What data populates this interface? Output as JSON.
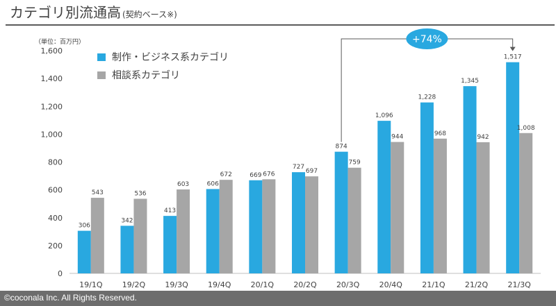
{
  "page": {
    "title": "カテゴリ別流通高",
    "title_note": "(契約ベース※)",
    "footer": "©coconala Inc. All Rights Reserved."
  },
  "chart_data": {
    "type": "bar",
    "title": "カテゴリ別流通高",
    "unit_label": "（単位：百万円）",
    "categories": [
      "19/1Q",
      "19/2Q",
      "19/3Q",
      "19/4Q",
      "20/1Q",
      "20/2Q",
      "20/3Q",
      "20/4Q",
      "21/1Q",
      "21/2Q",
      "21/3Q"
    ],
    "series": [
      {
        "name": "制作・ビジネス系カテゴリ",
        "color": "#29a8e0",
        "values": [
          306,
          342,
          413,
          606,
          669,
          727,
          874,
          1096,
          1228,
          1345,
          1517
        ],
        "labels": [
          "306",
          "342",
          "413",
          "606",
          "669",
          "727",
          "874",
          "1,096",
          "1,228",
          "1,345",
          "1,517"
        ]
      },
      {
        "name": "相談系カテゴリ",
        "color": "#a6a6a6",
        "values": [
          543,
          536,
          603,
          672,
          676,
          697,
          759,
          944,
          968,
          942,
          1008
        ],
        "labels": [
          "543",
          "536",
          "603",
          "672",
          "676",
          "697",
          "759",
          "944",
          "968",
          "942",
          "1,008"
        ]
      }
    ],
    "ylim": [
      0,
      1600
    ],
    "yticks": [
      0,
      200,
      400,
      600,
      800,
      1000,
      1200,
      1400,
      1600
    ],
    "ytick_labels": [
      "0",
      "200",
      "400",
      "600",
      "800",
      "1,000",
      "1,200",
      "1,400",
      "1,600"
    ],
    "grid": false,
    "legend_position": "top-left",
    "annotation": {
      "text": "+74%",
      "from_category": "20/3Q",
      "to_category": "21/3Q",
      "series": "制作・ビジネス系カテゴリ",
      "color": "#29a8e0"
    }
  }
}
